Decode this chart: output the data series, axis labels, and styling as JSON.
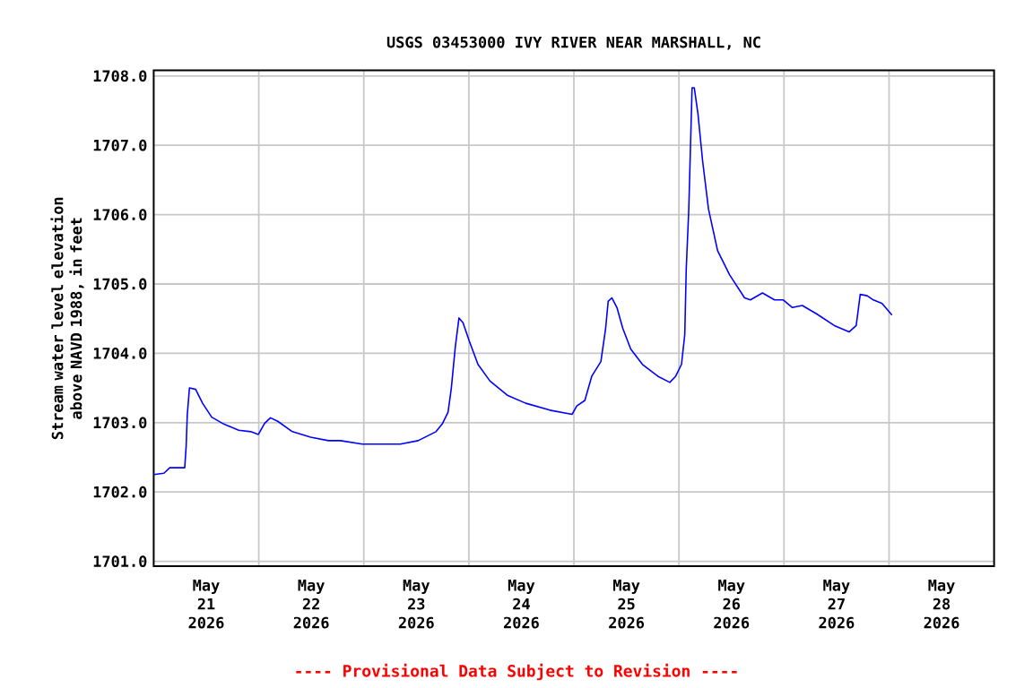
{
  "chart_data": {
    "type": "line",
    "title": "USGS 03453000 IVY RIVER NEAR MARSHALL, NC",
    "ylabel": "Stream water level elevation above NAVD 1988, in feet",
    "annotations": [
      "---- Provisional Data Subject to Revision ----"
    ],
    "x": [
      "2026-05-21T00:00",
      "2026-05-21T02:20",
      "2026-05-21T03:40",
      "2026-05-21T07:05",
      "2026-05-21T07:25",
      "2026-05-21T07:40",
      "2026-05-21T08:10",
      "2026-05-21T09:35",
      "2026-05-21T11:10",
      "2026-05-21T13:15",
      "2026-05-21T16:00",
      "2026-05-21T19:25",
      "2026-05-21T22:10",
      "2026-05-21T23:55",
      "2026-05-22T01:20",
      "2026-05-22T02:40",
      "2026-05-22T04:20",
      "2026-05-22T07:40",
      "2026-05-22T11:50",
      "2026-05-22T15:55",
      "2026-05-22T18:40",
      "2026-05-22T23:40",
      "2026-05-23T08:20",
      "2026-05-23T12:25",
      "2026-05-23T16:30",
      "2026-05-23T17:55",
      "2026-05-23T19:15",
      "2026-05-23T20:00",
      "2026-05-23T20:55",
      "2026-05-23T21:45",
      "2026-05-23T22:40",
      "2026-05-24T00:05",
      "2026-05-24T02:05",
      "2026-05-24T04:50",
      "2026-05-24T08:55",
      "2026-05-24T13:00",
      "2026-05-24T18:30",
      "2026-05-24T23:35",
      "2026-05-25T00:40",
      "2026-05-25T02:30",
      "2026-05-25T04:05",
      "2026-05-25T06:10",
      "2026-05-25T07:15",
      "2026-05-25T07:50",
      "2026-05-25T08:40",
      "2026-05-25T09:50",
      "2026-05-25T11:10",
      "2026-05-25T13:00",
      "2026-05-25T15:40",
      "2026-05-25T19:10",
      "2026-05-25T21:55",
      "2026-05-25T23:15",
      "2026-05-26T00:35",
      "2026-05-26T01:20",
      "2026-05-26T01:40",
      "2026-05-26T02:15",
      "2026-05-26T03:00",
      "2026-05-26T03:30",
      "2026-05-26T04:20",
      "2026-05-26T05:25",
      "2026-05-26T06:45",
      "2026-05-26T08:50",
      "2026-05-26T11:35",
      "2026-05-26T15:00",
      "2026-05-26T16:20",
      "2026-05-26T19:05",
      "2026-05-26T21:50",
      "2026-05-26T23:50",
      "2026-05-27T01:55",
      "2026-05-27T04:10",
      "2026-05-27T07:25",
      "2026-05-27T11:30",
      "2026-05-27T14:55",
      "2026-05-27T16:30",
      "2026-05-27T17:25",
      "2026-05-27T19:00",
      "2026-05-27T20:25",
      "2026-05-27T22:25",
      "2026-05-28T00:40"
    ],
    "series": [
      {
        "color": "#0000ff",
        "values": [
          1702.25,
          1702.27,
          1702.35,
          1702.35,
          1702.66,
          1703.11,
          1703.5,
          1703.48,
          1703.28,
          1703.08,
          1702.98,
          1702.89,
          1702.87,
          1702.83,
          1702.99,
          1703.07,
          1703.02,
          1702.87,
          1702.79,
          1702.74,
          1702.74,
          1702.69,
          1702.69,
          1702.74,
          1702.87,
          1702.98,
          1703.15,
          1703.5,
          1704.1,
          1704.51,
          1704.44,
          1704.18,
          1703.84,
          1703.6,
          1703.39,
          1703.28,
          1703.18,
          1703.12,
          1703.24,
          1703.32,
          1703.67,
          1703.88,
          1704.36,
          1704.75,
          1704.8,
          1704.66,
          1704.36,
          1704.06,
          1703.84,
          1703.67,
          1703.58,
          1703.67,
          1703.84,
          1704.27,
          1705.22,
          1706.08,
          1707.83,
          1707.83,
          1707.46,
          1706.77,
          1706.08,
          1705.48,
          1705.13,
          1704.8,
          1704.77,
          1704.87,
          1704.77,
          1704.77,
          1704.66,
          1704.69,
          1704.57,
          1704.4,
          1704.31,
          1704.4,
          1704.85,
          1704.83,
          1704.77,
          1704.72,
          1704.55
        ]
      }
    ],
    "xlim": [
      "2026-05-21T00:00",
      "2026-05-29T00:00"
    ],
    "xticks": [
      {
        "value": "2026-05-22T00:00",
        "label": null
      },
      {
        "value": "2026-05-23T00:00",
        "label": null
      },
      {
        "value": "2026-05-24T00:00",
        "label": null
      },
      {
        "value": "2026-05-25T00:00",
        "label": null
      },
      {
        "value": "2026-05-26T00:00",
        "label": null
      },
      {
        "value": "2026-05-27T00:00",
        "label": null
      },
      {
        "value": "2026-05-28T00:00",
        "label": null
      },
      {
        "value": "2026-05-21T12:00",
        "label": "May 21 2026"
      },
      {
        "value": "2026-05-22T12:00",
        "label": "May 22 2026"
      },
      {
        "value": "2026-05-23T12:00",
        "label": "May 23 2026"
      },
      {
        "value": "2026-05-24T12:00",
        "label": "May 24 2026"
      },
      {
        "value": "2026-05-25T12:00",
        "label": "May 25 2026"
      },
      {
        "value": "2026-05-26T12:00",
        "label": "May 26 2026"
      },
      {
        "value": "2026-05-27T12:00",
        "label": "May 27 2026"
      },
      {
        "value": "2026-05-28T12:00",
        "label": "May 28 2026"
      }
    ],
    "ylim": [
      1700.93,
      1708.08
    ],
    "yticks": [
      {
        "value": 1701,
        "label": "1701.0"
      },
      {
        "value": 1702,
        "label": "1702.0"
      },
      {
        "value": 1703,
        "label": "1703.0"
      },
      {
        "value": 1704,
        "label": "1704.0"
      },
      {
        "value": 1705,
        "label": "1705.0"
      },
      {
        "value": 1706,
        "label": "1706.0"
      },
      {
        "value": 1707,
        "label": "1707.0"
      },
      {
        "value": 1708,
        "label": "1708.0"
      }
    ],
    "grid": true,
    "line_style": "solid",
    "marker": "none"
  }
}
